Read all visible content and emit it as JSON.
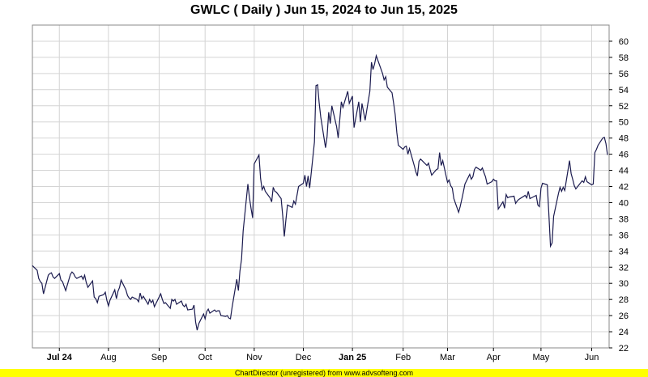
{
  "title": "GWLC ( Daily ) Jun 15, 2024 to Jun 15, 2025",
  "footer": "ChartDirector (unregistered) from www.advsofteng.com",
  "colors": {
    "line": "#1b1b4f",
    "grid": "#d4d4d4",
    "footer_bg": "#ffff00",
    "axis": "#000000"
  },
  "chart_data": {
    "type": "line",
    "title": "GWLC ( Daily ) Jun 15, 2024 to Jun 15, 2025",
    "xlabel": "",
    "ylabel": "",
    "ylim": [
      22,
      62
    ],
    "y_ticks": [
      22,
      24,
      26,
      28,
      30,
      32,
      34,
      36,
      38,
      40,
      42,
      44,
      46,
      48,
      50,
      52,
      54,
      56,
      58,
      60
    ],
    "x_range": [
      "2024-06-14",
      "2025-06-13"
    ],
    "x_ticks": [
      {
        "label": "Jul 24",
        "date": "2024-07-01",
        "bold": true
      },
      {
        "label": "Aug",
        "date": "2024-08-01",
        "bold": false
      },
      {
        "label": "Sep",
        "date": "2024-09-02",
        "bold": false
      },
      {
        "label": "Oct",
        "date": "2024-10-01",
        "bold": false
      },
      {
        "label": "Nov",
        "date": "2024-11-01",
        "bold": false
      },
      {
        "label": "Dec",
        "date": "2024-12-02",
        "bold": false
      },
      {
        "label": "Jan 25",
        "date": "2025-01-02",
        "bold": true
      },
      {
        "label": "Feb",
        "date": "2025-02-03",
        "bold": false
      },
      {
        "label": "Mar",
        "date": "2025-03-03",
        "bold": false
      },
      {
        "label": "Apr",
        "date": "2025-04-01",
        "bold": false
      },
      {
        "label": "May",
        "date": "2025-05-01",
        "bold": false
      },
      {
        "label": "Jun",
        "date": "2025-06-02",
        "bold": false
      }
    ],
    "y_axis_side": "right",
    "grid": true,
    "series": [
      {
        "values": [
          [
            "2024-06-14",
            32.2
          ],
          [
            "2024-06-17",
            31.6
          ],
          [
            "2024-06-18",
            30.6
          ],
          [
            "2024-06-19",
            30.2
          ],
          [
            "2024-06-20",
            30.0
          ],
          [
            "2024-06-21",
            28.7
          ],
          [
            "2024-06-24",
            31.0
          ],
          [
            "2024-06-25",
            31.2
          ],
          [
            "2024-06-26",
            31.3
          ],
          [
            "2024-06-27",
            30.8
          ],
          [
            "2024-06-28",
            30.6
          ],
          [
            "2024-07-01",
            31.2
          ],
          [
            "2024-07-02",
            30.4
          ],
          [
            "2024-07-03",
            30.2
          ],
          [
            "2024-07-05",
            29.1
          ],
          [
            "2024-07-08",
            31.1
          ],
          [
            "2024-07-09",
            31.4
          ],
          [
            "2024-07-10",
            31.2
          ],
          [
            "2024-07-11",
            30.8
          ],
          [
            "2024-07-12",
            30.6
          ],
          [
            "2024-07-15",
            30.9
          ],
          [
            "2024-07-16",
            30.5
          ],
          [
            "2024-07-17",
            31.0
          ],
          [
            "2024-07-18",
            30.1
          ],
          [
            "2024-07-19",
            29.5
          ],
          [
            "2024-07-22",
            30.3
          ],
          [
            "2024-07-23",
            28.3
          ],
          [
            "2024-07-24",
            28.1
          ],
          [
            "2024-07-25",
            27.6
          ],
          [
            "2024-07-26",
            28.4
          ],
          [
            "2024-07-29",
            28.6
          ],
          [
            "2024-07-30",
            28.9
          ],
          [
            "2024-07-31",
            27.9
          ],
          [
            "2024-08-01",
            27.2
          ],
          [
            "2024-08-02",
            27.9
          ],
          [
            "2024-08-05",
            29.2
          ],
          [
            "2024-08-06",
            28.1
          ],
          [
            "2024-08-07",
            29.0
          ],
          [
            "2024-08-08",
            29.5
          ],
          [
            "2024-08-09",
            30.4
          ],
          [
            "2024-08-12",
            29.2
          ],
          [
            "2024-08-13",
            28.5
          ],
          [
            "2024-08-14",
            28.2
          ],
          [
            "2024-08-15",
            28.0
          ],
          [
            "2024-08-16",
            28.3
          ],
          [
            "2024-08-19",
            28.0
          ],
          [
            "2024-08-20",
            27.7
          ],
          [
            "2024-08-21",
            28.8
          ],
          [
            "2024-08-22",
            28.1
          ],
          [
            "2024-08-23",
            28.4
          ],
          [
            "2024-08-26",
            27.4
          ],
          [
            "2024-08-27",
            28.0
          ],
          [
            "2024-08-28",
            27.6
          ],
          [
            "2024-08-29",
            27.9
          ],
          [
            "2024-08-30",
            27.1
          ],
          [
            "2024-09-03",
            28.7
          ],
          [
            "2024-09-04",
            28.0
          ],
          [
            "2024-09-05",
            27.5
          ],
          [
            "2024-09-06",
            27.6
          ],
          [
            "2024-09-09",
            26.9
          ],
          [
            "2024-09-10",
            28.0
          ],
          [
            "2024-09-11",
            27.8
          ],
          [
            "2024-09-12",
            28.0
          ],
          [
            "2024-09-13",
            27.4
          ],
          [
            "2024-09-16",
            27.8
          ],
          [
            "2024-09-17",
            27.3
          ],
          [
            "2024-09-18",
            27.1
          ],
          [
            "2024-09-19",
            27.4
          ],
          [
            "2024-09-20",
            26.7
          ],
          [
            "2024-09-23",
            26.8
          ],
          [
            "2024-09-24",
            27.3
          ],
          [
            "2024-09-25",
            25.2
          ],
          [
            "2024-09-26",
            24.2
          ],
          [
            "2024-09-27",
            25.0
          ],
          [
            "2024-09-30",
            26.2
          ],
          [
            "2024-10-01",
            25.6
          ],
          [
            "2024-10-02",
            26.5
          ],
          [
            "2024-10-03",
            26.8
          ],
          [
            "2024-10-04",
            26.3
          ],
          [
            "2024-10-07",
            26.7
          ],
          [
            "2024-10-08",
            26.5
          ],
          [
            "2024-10-09",
            26.6
          ],
          [
            "2024-10-10",
            26.6
          ],
          [
            "2024-10-11",
            26.0
          ],
          [
            "2024-10-14",
            25.9
          ],
          [
            "2024-10-15",
            26.0
          ],
          [
            "2024-10-16",
            25.7
          ],
          [
            "2024-10-17",
            25.6
          ],
          [
            "2024-10-18",
            27.0
          ],
          [
            "2024-10-21",
            30.5
          ],
          [
            "2024-10-22",
            29.1
          ],
          [
            "2024-10-23",
            31.5
          ],
          [
            "2024-10-24",
            33.0
          ],
          [
            "2024-10-25",
            36.5
          ],
          [
            "2024-10-28",
            42.3
          ],
          [
            "2024-10-29",
            40.6
          ],
          [
            "2024-10-30",
            39.3
          ],
          [
            "2024-10-31",
            38.1
          ],
          [
            "2024-11-01",
            44.8
          ],
          [
            "2024-11-04",
            45.9
          ],
          [
            "2024-11-05",
            43.0
          ],
          [
            "2024-11-06",
            41.6
          ],
          [
            "2024-11-07",
            42.0
          ],
          [
            "2024-11-08",
            41.4
          ],
          [
            "2024-11-11",
            40.6
          ],
          [
            "2024-11-12",
            40.1
          ],
          [
            "2024-11-13",
            41.9
          ],
          [
            "2024-11-14",
            41.4
          ],
          [
            "2024-11-15",
            41.3
          ],
          [
            "2024-11-18",
            40.5
          ],
          [
            "2024-11-19",
            38.3
          ],
          [
            "2024-11-20",
            35.8
          ],
          [
            "2024-11-21",
            37.9
          ],
          [
            "2024-11-22",
            39.7
          ],
          [
            "2024-11-25",
            39.4
          ],
          [
            "2024-11-26",
            40.2
          ],
          [
            "2024-11-27",
            39.8
          ],
          [
            "2024-11-29",
            42.0
          ],
          [
            "2024-12-02",
            42.4
          ],
          [
            "2024-12-03",
            43.4
          ],
          [
            "2024-12-04",
            42.0
          ],
          [
            "2024-12-05",
            43.3
          ],
          [
            "2024-12-06",
            41.8
          ],
          [
            "2024-12-09",
            47.5
          ],
          [
            "2024-12-10",
            54.5
          ],
          [
            "2024-12-11",
            54.6
          ],
          [
            "2024-12-12",
            52.4
          ],
          [
            "2024-12-13",
            50.6
          ],
          [
            "2024-12-16",
            46.8
          ],
          [
            "2024-12-17",
            48.2
          ],
          [
            "2024-12-18",
            51.2
          ],
          [
            "2024-12-19",
            49.8
          ],
          [
            "2024-12-20",
            52.0
          ],
          [
            "2024-12-23",
            49.4
          ],
          [
            "2024-12-24",
            48.0
          ],
          [
            "2024-12-26",
            52.5
          ],
          [
            "2024-12-27",
            51.8
          ],
          [
            "2024-12-30",
            53.8
          ],
          [
            "2024-12-31",
            52.3
          ],
          [
            "2025-01-02",
            53.2
          ],
          [
            "2025-01-03",
            49.3
          ],
          [
            "2025-01-06",
            52.5
          ],
          [
            "2025-01-07",
            50.0
          ],
          [
            "2025-01-08",
            52.3
          ],
          [
            "2025-01-10",
            50.2
          ],
          [
            "2025-01-13",
            53.8
          ],
          [
            "2025-01-14",
            57.4
          ],
          [
            "2025-01-15",
            56.5
          ],
          [
            "2025-01-16",
            57.2
          ],
          [
            "2025-01-17",
            58.2
          ],
          [
            "2025-01-21",
            56.0
          ],
          [
            "2025-01-22",
            55.2
          ],
          [
            "2025-01-23",
            55.6
          ],
          [
            "2025-01-24",
            54.3
          ],
          [
            "2025-01-27",
            53.6
          ],
          [
            "2025-01-28",
            52.3
          ],
          [
            "2025-01-29",
            50.9
          ],
          [
            "2025-01-30",
            48.7
          ],
          [
            "2025-01-31",
            47.1
          ],
          [
            "2025-02-03",
            46.6
          ],
          [
            "2025-02-04",
            46.9
          ],
          [
            "2025-02-05",
            47.0
          ],
          [
            "2025-02-06",
            46.0
          ],
          [
            "2025-02-07",
            46.7
          ],
          [
            "2025-02-10",
            44.6
          ],
          [
            "2025-02-11",
            43.8
          ],
          [
            "2025-02-12",
            43.3
          ],
          [
            "2025-02-13",
            45.1
          ],
          [
            "2025-02-14",
            45.4
          ],
          [
            "2025-02-18",
            44.6
          ],
          [
            "2025-02-19",
            44.9
          ],
          [
            "2025-02-20",
            44.1
          ],
          [
            "2025-02-21",
            43.4
          ],
          [
            "2025-02-24",
            44.1
          ],
          [
            "2025-02-25",
            44.2
          ],
          [
            "2025-02-26",
            46.2
          ],
          [
            "2025-02-27",
            44.6
          ],
          [
            "2025-02-28",
            45.2
          ],
          [
            "2025-03-03",
            42.5
          ],
          [
            "2025-03-04",
            42.8
          ],
          [
            "2025-03-05",
            42.1
          ],
          [
            "2025-03-06",
            41.8
          ],
          [
            "2025-03-07",
            40.5
          ],
          [
            "2025-03-10",
            38.8
          ],
          [
            "2025-03-11",
            39.5
          ],
          [
            "2025-03-12",
            40.4
          ],
          [
            "2025-03-13",
            41.3
          ],
          [
            "2025-03-14",
            42.3
          ],
          [
            "2025-03-17",
            43.5
          ],
          [
            "2025-03-18",
            42.9
          ],
          [
            "2025-03-19",
            43.2
          ],
          [
            "2025-03-20",
            44.1
          ],
          [
            "2025-03-21",
            44.4
          ],
          [
            "2025-03-24",
            44.0
          ],
          [
            "2025-03-25",
            44.3
          ],
          [
            "2025-03-26",
            43.7
          ],
          [
            "2025-03-27",
            43.2
          ],
          [
            "2025-03-28",
            42.3
          ],
          [
            "2025-03-31",
            42.6
          ],
          [
            "2025-04-01",
            42.9
          ],
          [
            "2025-04-02",
            42.7
          ],
          [
            "2025-04-03",
            42.7
          ],
          [
            "2025-04-04",
            39.2
          ],
          [
            "2025-04-07",
            40.1
          ],
          [
            "2025-04-08",
            39.3
          ],
          [
            "2025-04-09",
            41.0
          ],
          [
            "2025-04-10",
            40.6
          ],
          [
            "2025-04-11",
            40.7
          ],
          [
            "2025-04-14",
            40.8
          ],
          [
            "2025-04-15",
            39.9
          ],
          [
            "2025-04-16",
            40.2
          ],
          [
            "2025-04-17",
            40.4
          ],
          [
            "2025-04-21",
            40.9
          ],
          [
            "2025-04-22",
            40.6
          ],
          [
            "2025-04-23",
            41.4
          ],
          [
            "2025-04-24",
            40.5
          ],
          [
            "2025-04-25",
            40.6
          ],
          [
            "2025-04-28",
            40.9
          ],
          [
            "2025-04-29",
            39.7
          ],
          [
            "2025-04-30",
            39.5
          ],
          [
            "2025-05-01",
            41.8
          ],
          [
            "2025-05-02",
            42.4
          ],
          [
            "2025-05-05",
            42.2
          ],
          [
            "2025-05-06",
            38.4
          ],
          [
            "2025-05-07",
            34.6
          ],
          [
            "2025-05-08",
            35.0
          ],
          [
            "2025-05-09",
            38.3
          ],
          [
            "2025-05-12",
            41.1
          ],
          [
            "2025-05-13",
            41.9
          ],
          [
            "2025-05-14",
            41.4
          ],
          [
            "2025-05-15",
            41.9
          ],
          [
            "2025-05-16",
            41.5
          ],
          [
            "2025-05-19",
            45.2
          ],
          [
            "2025-05-20",
            43.6
          ],
          [
            "2025-05-21",
            42.9
          ],
          [
            "2025-05-22",
            42.1
          ],
          [
            "2025-05-23",
            41.7
          ],
          [
            "2025-05-27",
            42.7
          ],
          [
            "2025-05-28",
            42.5
          ],
          [
            "2025-05-29",
            43.2
          ],
          [
            "2025-05-30",
            42.6
          ],
          [
            "2025-06-02",
            42.2
          ],
          [
            "2025-06-03",
            42.3
          ],
          [
            "2025-06-04",
            46.2
          ],
          [
            "2025-06-05",
            46.6
          ],
          [
            "2025-06-06",
            47.1
          ],
          [
            "2025-06-09",
            48.0
          ],
          [
            "2025-06-10",
            48.1
          ],
          [
            "2025-06-11",
            47.3
          ],
          [
            "2025-06-12",
            45.9
          ]
        ]
      }
    ]
  }
}
